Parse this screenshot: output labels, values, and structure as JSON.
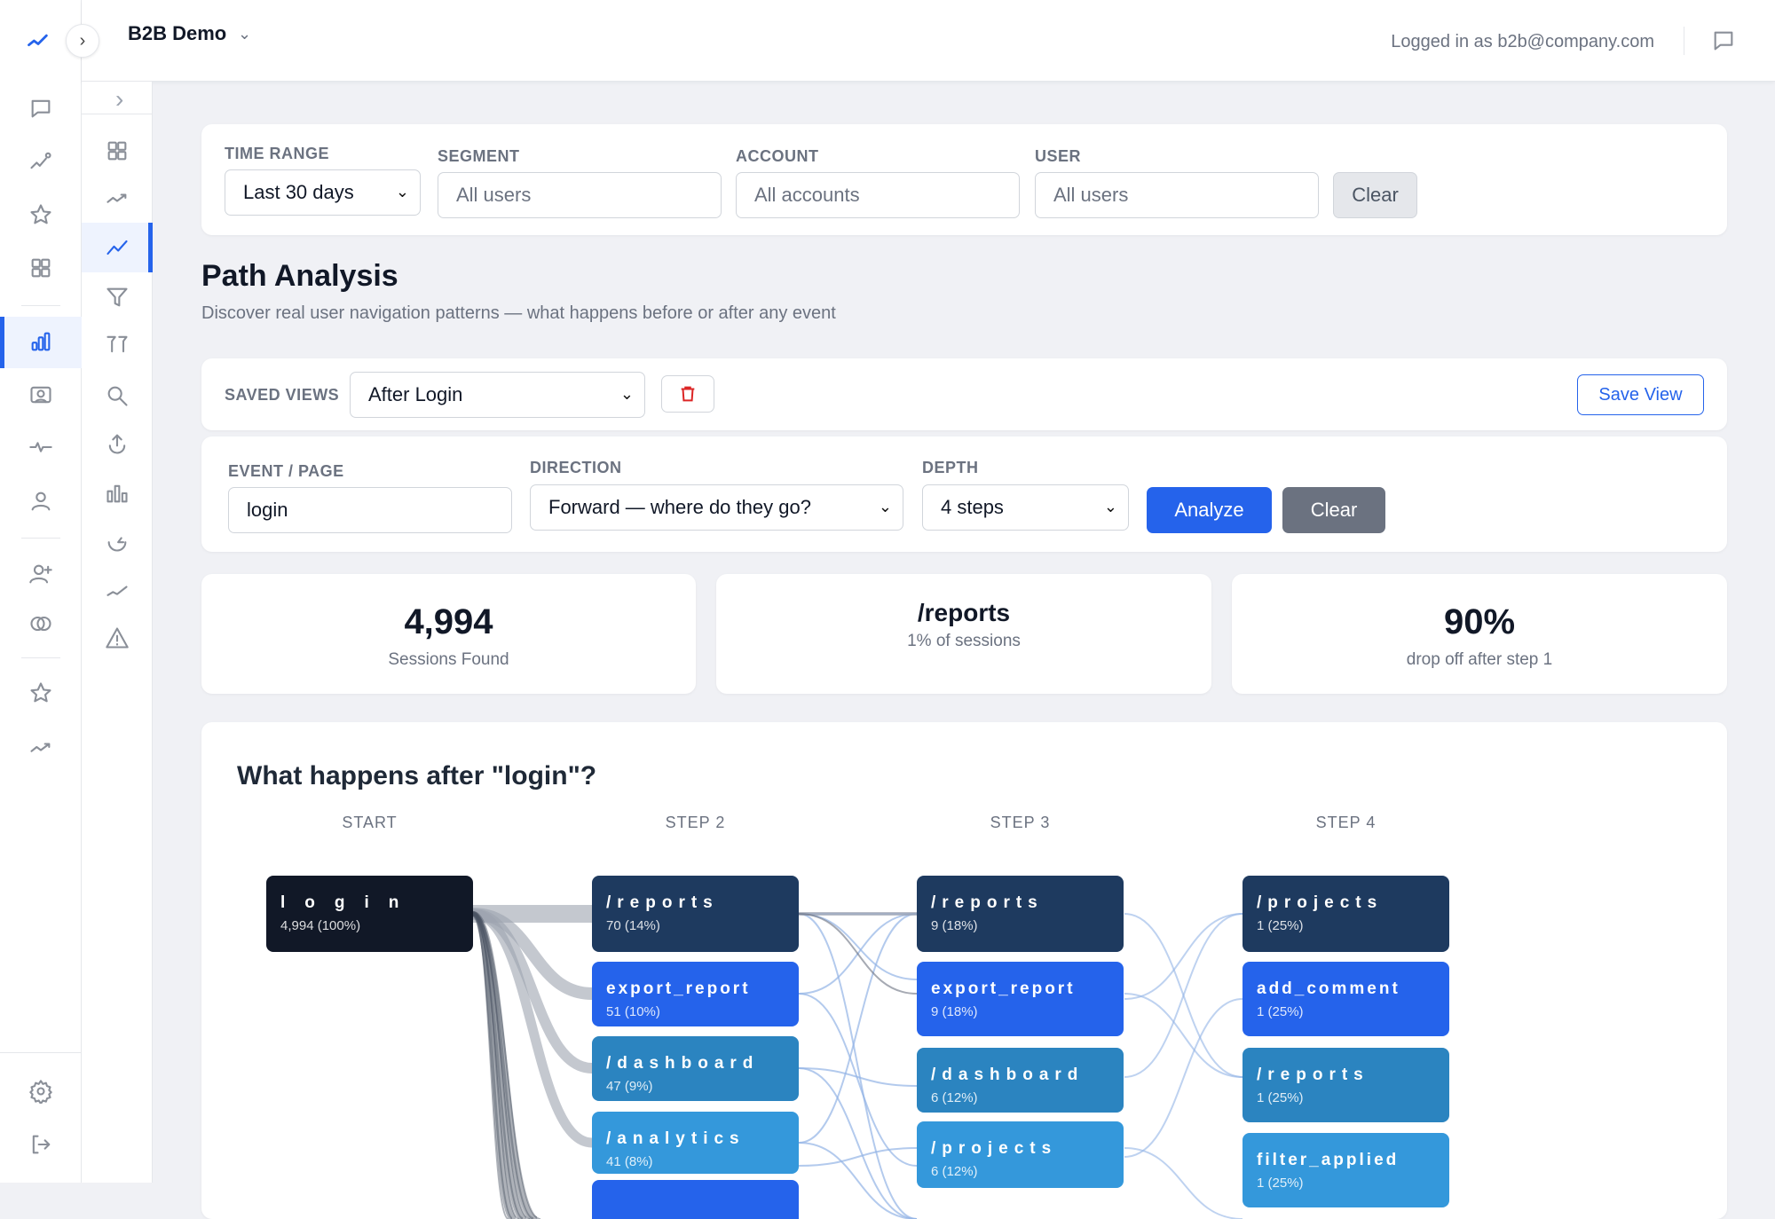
{
  "header": {
    "workspace": "B2B Demo",
    "logged_in": "Logged in as b2b@company.com"
  },
  "filters": {
    "time_range_label": "TIME RANGE",
    "time_range_value": "Last 30 days",
    "segment_label": "SEGMENT",
    "segment_placeholder": "All users",
    "account_label": "ACCOUNT",
    "account_placeholder": "All accounts",
    "user_label": "USER",
    "user_placeholder": "All users",
    "clear": "Clear"
  },
  "page": {
    "title": "Path Analysis",
    "subtitle": "Discover real user navigation patterns — what happens before or after any event"
  },
  "saved_views": {
    "label": "SAVED VIEWS",
    "value": "After Login",
    "save": "Save View"
  },
  "query": {
    "event_label": "EVENT / PAGE",
    "event_value": "login",
    "direction_label": "DIRECTION",
    "direction_value": "Forward — where do they go?",
    "depth_label": "DEPTH",
    "depth_value": "4 steps",
    "analyze": "Analyze",
    "clear": "Clear"
  },
  "stats": [
    {
      "value": "4,994",
      "label": "Sessions Found"
    },
    {
      "value": "/reports",
      "label": "1% of sessions"
    },
    {
      "value": "90%",
      "label": "drop off after step 1"
    }
  ],
  "chart_data": {
    "type": "sankey",
    "title": "What happens after \"login\"?",
    "columns": [
      {
        "header": "START",
        "nodes": [
          {
            "label": "login",
            "value": "4,994 (100%)",
            "color": "#111827"
          }
        ]
      },
      {
        "header": "STEP 2",
        "nodes": [
          {
            "label": "/reports",
            "value": "70 (14%)",
            "color": "#1e3a5f"
          },
          {
            "label": "export_report",
            "value": "51 (10%)",
            "color": "#2563eb"
          },
          {
            "label": "/dashboard",
            "value": "47 (9%)",
            "color": "#2b84c0"
          },
          {
            "label": "/analytics",
            "value": "41 (8%)",
            "color": "#3498db"
          },
          {
            "label": "",
            "value": "",
            "color": "#2563eb"
          }
        ]
      },
      {
        "header": "STEP 3",
        "nodes": [
          {
            "label": "/reports",
            "value": "9 (18%)",
            "color": "#1e3a5f"
          },
          {
            "label": "export_report",
            "value": "9 (18%)",
            "color": "#2563eb"
          },
          {
            "label": "/dashboard",
            "value": "6 (12%)",
            "color": "#2b84c0"
          },
          {
            "label": "/projects",
            "value": "6 (12%)",
            "color": "#3498db"
          }
        ]
      },
      {
        "header": "STEP 4",
        "nodes": [
          {
            "label": "/projects",
            "value": "1 (25%)",
            "color": "#1e3a5f"
          },
          {
            "label": "add_comment",
            "value": "1 (25%)",
            "color": "#2563eb"
          },
          {
            "label": "/reports",
            "value": "1 (25%)",
            "color": "#2b84c0"
          },
          {
            "label": "filter_applied",
            "value": "1 (25%)",
            "color": "#3498db"
          }
        ]
      }
    ]
  }
}
